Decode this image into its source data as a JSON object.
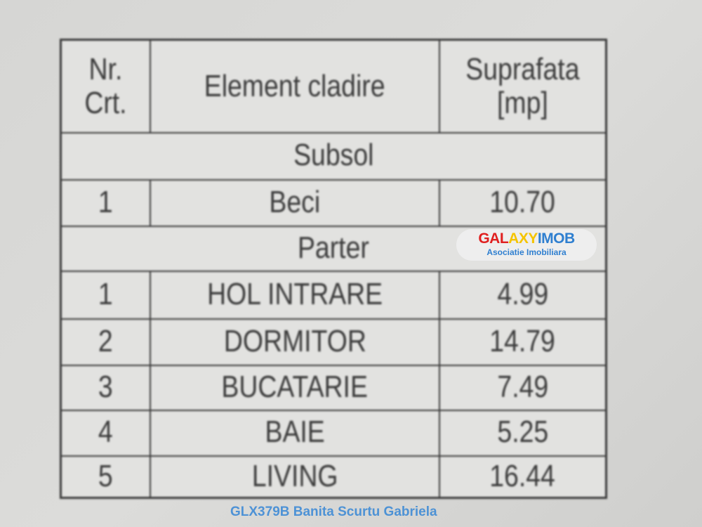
{
  "table": {
    "headers": [
      "Nr.\nCrt.",
      "Element cladire",
      "Suprafata\n[mp]"
    ],
    "sections": [
      {
        "title": "Subsol",
        "rows": [
          {
            "nr": "1",
            "element": "Beci",
            "area": "10.70"
          }
        ]
      },
      {
        "title": "Parter",
        "rows": [
          {
            "nr": "1",
            "element": "HOL INTRARE",
            "area": "4.99"
          },
          {
            "nr": "2",
            "element": "DORMITOR",
            "area": "14.79"
          },
          {
            "nr": "3",
            "element": "BUCATARIE",
            "area": "7.49"
          },
          {
            "nr": "4",
            "element": "BAIE",
            "area": "5.25"
          },
          {
            "nr": "5",
            "element": "LIVING",
            "area": "16.44"
          }
        ]
      }
    ]
  },
  "watermark": {
    "logo": "GALAXYIMOB",
    "subtitle": "Asociatie Imobiliara",
    "agent": "GLX379B  Banita Scurtu Gabriela",
    "colors": [
      "#e02020",
      "#f5c400",
      "#2f7fd0"
    ]
  }
}
